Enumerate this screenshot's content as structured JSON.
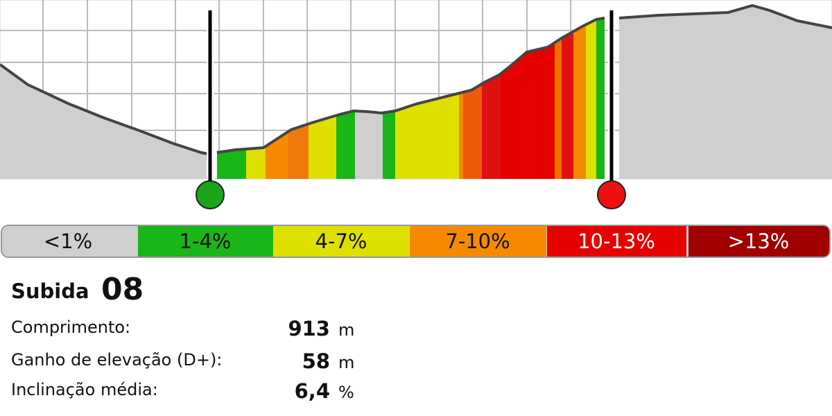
{
  "legend": [
    "<1%",
    "1-4%",
    "4-7%",
    "7-10%",
    "10-13%",
    ">13%"
  ],
  "title": {
    "label": "Subida",
    "number": "08"
  },
  "stats": [
    {
      "label": "Comprimento:",
      "value": "913",
      "unit": "m"
    },
    {
      "label": "Ganho de elevação (D+):",
      "value": "58",
      "unit": "m"
    },
    {
      "label": "Inclinação média:",
      "value": "6,4",
      "unit": "%"
    }
  ]
}
